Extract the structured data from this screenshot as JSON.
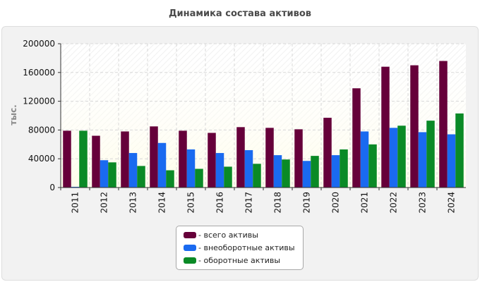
{
  "chart_data": {
    "type": "bar",
    "title": "Динамика состава активов",
    "ylabel": "тыс.",
    "xlabel": "",
    "ylim": [
      0,
      200000
    ],
    "yticks": [
      0,
      40000,
      80000,
      120000,
      160000,
      200000
    ],
    "categories": [
      "2011",
      "2012",
      "2013",
      "2014",
      "2015",
      "2016",
      "2017",
      "2018",
      "2019",
      "2020",
      "2021",
      "2022",
      "2023",
      "2024"
    ],
    "grid": true,
    "legend_position": "bottom-center",
    "series": [
      {
        "name": "- всего активы",
        "color": "#66003a",
        "values": [
          79000,
          72000,
          78000,
          85000,
          79000,
          76000,
          84000,
          83000,
          81000,
          97000,
          138000,
          168000,
          170000,
          176000
        ]
      },
      {
        "name": "- внеоборотные активы",
        "color": "#1a6af0",
        "values": [
          1000,
          38000,
          48000,
          62000,
          53000,
          48000,
          52000,
          45000,
          37000,
          45000,
          78000,
          83000,
          77000,
          74000
        ]
      },
      {
        "name": "- оборотные активы",
        "color": "#0a8a26",
        "values": [
          79000,
          35000,
          30000,
          24000,
          26000,
          29000,
          33000,
          39000,
          44000,
          53000,
          60000,
          86000,
          93000,
          103000
        ]
      }
    ]
  }
}
